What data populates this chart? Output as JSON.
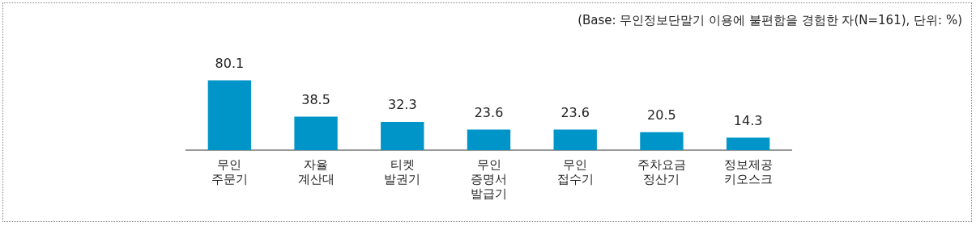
{
  "chart_data": {
    "type": "bar",
    "categories": [
      "무인 주문기",
      "자율 계산대",
      "티켓 발권기",
      "무인 증명서 발급기",
      "무인 접수기",
      "주차요금 정산기",
      "정보제공 키오스크"
    ],
    "values": [
      80.1,
      38.5,
      32.3,
      23.6,
      23.6,
      20.5,
      14.3
    ],
    "color": "#0095c8",
    "tick_labels": "x",
    "data_labels": true,
    "grid": false,
    "legend": false,
    "annotations": [
      "(Base: 무인정보단말기 이용에 불편함을 경험한 자(N=161), 단위: %)"
    ]
  }
}
